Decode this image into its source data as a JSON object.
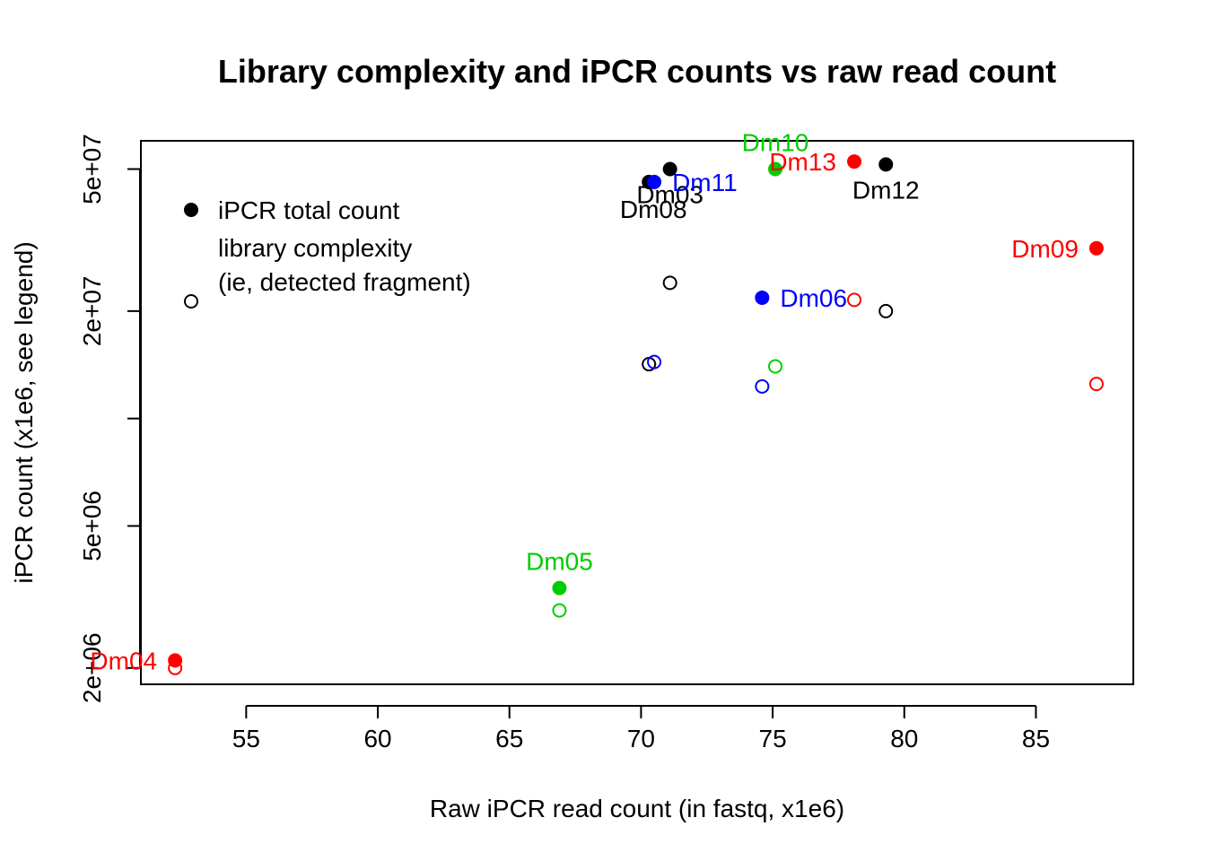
{
  "chart_data": {
    "type": "scatter",
    "title": "Library complexity and iPCR counts vs raw read count",
    "xlabel": "Raw iPCR read count (in fastq, x1e6)",
    "ylabel": "iPCR count (x1e6, see legend)",
    "xlim": [
      51,
      88.7
    ],
    "ylim": [
      1800000,
      60000000
    ],
    "y_scale": "log",
    "grid": false,
    "x_ticks": [
      {
        "value": 55,
        "label": "55"
      },
      {
        "value": 60,
        "label": "60"
      },
      {
        "value": 65,
        "label": "65"
      },
      {
        "value": 70,
        "label": "70"
      },
      {
        "value": 75,
        "label": "75"
      },
      {
        "value": 80,
        "label": "80"
      },
      {
        "value": 85,
        "label": "85"
      }
    ],
    "y_ticks": [
      {
        "value": 2000000,
        "label": "2e+06"
      },
      {
        "value": 5000000,
        "label": "5e+06"
      },
      {
        "value": 10000000,
        "label": ""
      },
      {
        "value": 20000000,
        "label": "2e+07"
      },
      {
        "value": 50000000,
        "label": "5e+07"
      }
    ],
    "legend": {
      "position": "top-left",
      "entries": [
        {
          "marker": "filled-circle",
          "lines": [
            "iPCR total count"
          ]
        },
        {
          "marker": "open-circle",
          "lines": [
            "library complexity",
            "(ie, detected fragment)"
          ]
        }
      ]
    },
    "colors": {
      "black": "#000000",
      "red": "#ff0000",
      "green": "#00cd00",
      "blue": "#0000ff"
    },
    "series": [
      {
        "name": "iPCR total count",
        "marker": "filled-circle",
        "points": [
          {
            "x": 52.3,
            "y": 2100000,
            "color": "red",
            "label": "Dm04",
            "pos": "left"
          },
          {
            "x": 66.9,
            "y": 3350000,
            "color": "green",
            "label": "Dm05",
            "pos": "top"
          },
          {
            "x": 70.3,
            "y": 46000000,
            "color": "black",
            "label": "Dm08",
            "pos": "bottom2"
          },
          {
            "x": 71.1,
            "y": 50000000,
            "color": "black",
            "label": "Dm03",
            "pos": "bottom"
          },
          {
            "x": 70.5,
            "y": 46000000,
            "color": "blue",
            "label": "Dm11",
            "pos": "right"
          },
          {
            "x": 74.6,
            "y": 21800000,
            "color": "blue",
            "label": "Dm06",
            "pos": "right"
          },
          {
            "x": 75.1,
            "y": 50000000,
            "color": "green",
            "label": "Dm10",
            "pos": "top"
          },
          {
            "x": 78.1,
            "y": 52500000,
            "color": "red",
            "label": "Dm13",
            "pos": "left"
          },
          {
            "x": 79.3,
            "y": 51500000,
            "color": "black",
            "label": "Dm12",
            "pos": "bottom"
          },
          {
            "x": 87.3,
            "y": 30000000,
            "color": "red",
            "label": "Dm09",
            "pos": "left"
          }
        ]
      },
      {
        "name": "library complexity",
        "marker": "open-circle",
        "points": [
          {
            "x": 52.3,
            "y": 2000000,
            "color": "red"
          },
          {
            "x": 66.9,
            "y": 2900000,
            "color": "green"
          },
          {
            "x": 70.3,
            "y": 14200000,
            "color": "black"
          },
          {
            "x": 70.5,
            "y": 14400000,
            "color": "blue"
          },
          {
            "x": 71.1,
            "y": 24000000,
            "color": "black"
          },
          {
            "x": 74.6,
            "y": 12300000,
            "color": "blue"
          },
          {
            "x": 75.1,
            "y": 14000000,
            "color": "green"
          },
          {
            "x": 78.1,
            "y": 21500000,
            "color": "red"
          },
          {
            "x": 79.3,
            "y": 20000000,
            "color": "black"
          },
          {
            "x": 87.3,
            "y": 12500000,
            "color": "red"
          }
        ]
      }
    ]
  }
}
